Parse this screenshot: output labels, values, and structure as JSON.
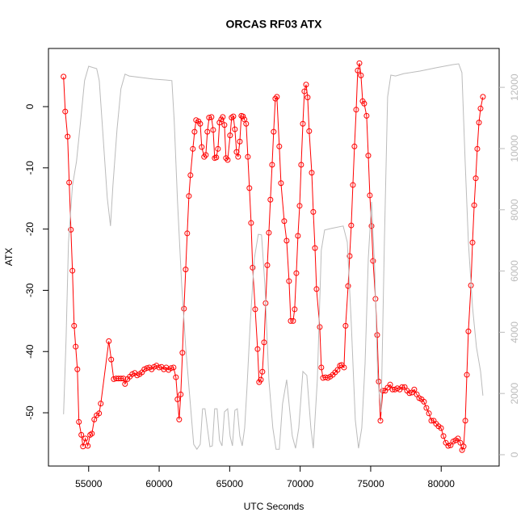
{
  "chart_data": {
    "type": "line",
    "title": "ORCAS RF03 ATX",
    "xlabel": "UTC Seconds",
    "ylabel": "ATX",
    "xlim": [
      52150,
      84110
    ],
    "ylim": [
      -58.7,
      9.5
    ],
    "y2lim": [
      -370,
      13270
    ],
    "xticks": [
      55000,
      60000,
      65000,
      70000,
      75000,
      80000
    ],
    "yticks": [
      -50,
      -40,
      -30,
      -20,
      -10,
      0
    ],
    "y2ticks": [
      0,
      2000,
      4000,
      6000,
      8000,
      10000,
      12000
    ],
    "y2color": "#bbbbbb",
    "series": [
      {
        "color": "#ff0000",
        "marker": "circle",
        "x": [
          53220,
          53340,
          53510,
          53620,
          53740,
          53850,
          53970,
          54080,
          54200,
          54310,
          54480,
          54600,
          54770,
          54940,
          55110,
          55230,
          55400,
          55570,
          55740,
          55860,
          56430,
          56600,
          56780,
          56950,
          57120,
          57290,
          57460,
          57580,
          57750,
          57920,
          58090,
          58270,
          58440,
          58610,
          58780,
          58950,
          59130,
          59300,
          59470,
          59640,
          59810,
          59990,
          60160,
          60330,
          60500,
          60670,
          60850,
          61020,
          61190,
          61300,
          61420,
          61530,
          61650,
          61760,
          61880,
          61990,
          62110,
          62220,
          62390,
          62510,
          62620,
          62790,
          62910,
          63020,
          63190,
          63310,
          63420,
          63540,
          63710,
          63830,
          63940,
          64050,
          64170,
          64280,
          64400,
          64510,
          64630,
          64740,
          64860,
          65030,
          65140,
          65260,
          65370,
          65490,
          65600,
          65720,
          65830,
          65940,
          66050,
          66170,
          66290,
          66400,
          66520,
          66630,
          66810,
          66980,
          67090,
          67210,
          67320,
          67440,
          67550,
          67670,
          67780,
          67890,
          68010,
          68120,
          68240,
          68350,
          68520,
          68640,
          68870,
          69040,
          69210,
          69330,
          69500,
          69610,
          69730,
          69840,
          69960,
          70070,
          70190,
          70300,
          70420,
          70530,
          70640,
          70820,
          70930,
          71050,
          71160,
          71390,
          71500,
          71620,
          71790,
          71960,
          72130,
          72310,
          72480,
          72650,
          72820,
          72940,
          73110,
          73220,
          73400,
          73510,
          73620,
          73740,
          73850,
          73970,
          74080,
          74200,
          74310,
          74430,
          74540,
          74710,
          74830,
          74940,
          75060,
          75170,
          75340,
          75460,
          75570,
          75690,
          75860,
          76030,
          76200,
          76380,
          76550,
          76720,
          76890,
          77060,
          77230,
          77410,
          77580,
          77750,
          77920,
          78090,
          78270,
          78440,
          78610,
          78780,
          78950,
          79130,
          79300,
          79470,
          79640,
          79810,
          79990,
          80160,
          80330,
          80500,
          80670,
          80850,
          81020,
          81190,
          81360,
          81480,
          81590,
          81710,
          81820,
          81930,
          82110,
          82220,
          82340,
          82450,
          82560,
          82680,
          82790,
          82960
        ],
        "values": [
          4.9,
          -0.8,
          -4.9,
          -12.4,
          -20.1,
          -26.8,
          -35.8,
          -39.2,
          -42.9,
          -51.5,
          -53.6,
          -55.5,
          -54.2,
          -55.4,
          -53.6,
          -53.4,
          -51.1,
          -50.4,
          -50.1,
          -48.5,
          -38.3,
          -41.3,
          -44.5,
          -44.4,
          -44.4,
          -44.4,
          -44.4,
          -45.3,
          -44.5,
          -44.1,
          -43.7,
          -43.5,
          -43.9,
          -43.7,
          -43.4,
          -42.9,
          -42.7,
          -42.6,
          -42.9,
          -42.5,
          -42.3,
          -42.6,
          -42.5,
          -42.9,
          -42.6,
          -43.0,
          -42.7,
          -42.6,
          -44.2,
          -47.8,
          -51.1,
          -47.0,
          -40.2,
          -33.0,
          -26.6,
          -20.7,
          -14.6,
          -11.2,
          -6.9,
          -4.1,
          -2.2,
          -2.4,
          -2.8,
          -6.6,
          -8.2,
          -7.9,
          -4.1,
          -1.8,
          -1.7,
          -3.8,
          -8.4,
          -8.3,
          -6.9,
          -2.6,
          -2.1,
          -1.7,
          -3.0,
          -8.4,
          -8.7,
          -4.7,
          -1.8,
          -1.6,
          -3.7,
          -7.4,
          -8.2,
          -5.7,
          -1.5,
          -1.6,
          -2.1,
          -2.8,
          -8.2,
          -13.3,
          -19.0,
          -26.3,
          -33.1,
          -39.6,
          -45.0,
          -44.6,
          -43.3,
          -38.5,
          -32.1,
          -25.9,
          -20.6,
          -15.2,
          -9.5,
          -4.1,
          1.3,
          1.6,
          -6.5,
          -12.5,
          -18.7,
          -21.9,
          -28.5,
          -35.0,
          -35.0,
          -33.1,
          -27.2,
          -21.1,
          -16.2,
          -9.5,
          -2.8,
          2.5,
          3.6,
          1.5,
          -4.0,
          -10.8,
          -17.2,
          -23.1,
          -29.8,
          -36.0,
          -42.6,
          -44.3,
          -44.2,
          -44.3,
          -44.1,
          -43.8,
          -43.4,
          -43.0,
          -42.3,
          -42.2,
          -42.6,
          -35.8,
          -29.3,
          -24.4,
          -19.4,
          -12.8,
          -6.5,
          -0.5,
          5.9,
          7.1,
          5.1,
          0.9,
          0.5,
          -1.5,
          -8.0,
          -14.5,
          -19.5,
          -25.2,
          -31.4,
          -37.3,
          -44.9,
          -51.3,
          -46.4,
          -46.4,
          -45.9,
          -45.4,
          -46.2,
          -46.2,
          -46.0,
          -46.2,
          -45.8,
          -45.8,
          -46.4,
          -46.8,
          -46.7,
          -46.2,
          -47.0,
          -47.6,
          -47.8,
          -48.2,
          -49.2,
          -50.1,
          -51.3,
          -51.3,
          -51.8,
          -52.2,
          -52.5,
          -53.8,
          -54.9,
          -55.4,
          -55.3,
          -54.7,
          -54.5,
          -54.2,
          -54.9,
          -56.1,
          -55.5,
          -51.3,
          -43.8,
          -36.7,
          -29.2,
          -22.2,
          -16.1,
          -11.7,
          -6.9,
          -2.6,
          -0.3,
          1.6
        ]
      },
      {
        "color": "#bbbbbb",
        "axis": "y2",
        "x": [
          53220,
          53400,
          53570,
          53850,
          54140,
          54430,
          54710,
          55000,
          55570,
          55750,
          56030,
          56320,
          56550,
          56720,
          57010,
          57290,
          57580,
          57870,
          58730,
          59580,
          60440,
          60900,
          61070,
          61300,
          61590,
          61880,
          62160,
          62450,
          62680,
          62910,
          63080,
          63250,
          63420,
          63600,
          63770,
          63940,
          64110,
          64280,
          64460,
          64630,
          64860,
          65030,
          65200,
          65370,
          65540,
          65720,
          65890,
          66060,
          66230,
          66460,
          66750,
          67030,
          67260,
          67490,
          67780,
          68060,
          68290,
          68520,
          68750,
          69040,
          69210,
          69440,
          69670,
          69900,
          70190,
          70470,
          70760,
          70930,
          71220,
          71500,
          71730,
          72190,
          73050,
          73340,
          73620,
          73910,
          74140,
          74370,
          74600,
          74830,
          75060,
          75280,
          75510,
          75740,
          75970,
          76200,
          76430,
          76770,
          77350,
          78490,
          79640,
          80790,
          81240,
          81470,
          81700,
          81930,
          82220,
          82500,
          82790,
          82960
        ],
        "values": [
          1320,
          3770,
          6940,
          8790,
          9580,
          10900,
          12220,
          12690,
          12610,
          12220,
          10370,
          8390,
          7470,
          8790,
          10630,
          11950,
          12430,
          12370,
          12320,
          12270,
          12240,
          12220,
          10900,
          8260,
          5620,
          3510,
          1930,
          340,
          180,
          340,
          1500,
          1500,
          870,
          260,
          290,
          1500,
          1500,
          470,
          290,
          1400,
          1500,
          610,
          290,
          1450,
          1500,
          610,
          290,
          870,
          2190,
          4300,
          6410,
          7200,
          7180,
          5620,
          2450,
          870,
          180,
          180,
          1660,
          2450,
          1660,
          610,
          210,
          870,
          2720,
          2590,
          870,
          210,
          2450,
          6680,
          7340,
          7390,
          7470,
          6940,
          4300,
          1130,
          210,
          870,
          2980,
          6410,
          8260,
          6150,
          2450,
          1400,
          6940,
          11690,
          12400,
          12370,
          12450,
          12530,
          12640,
          12740,
          12770,
          12480,
          9580,
          6940,
          4830,
          3510,
          2720,
          1930
        ]
      }
    ]
  }
}
